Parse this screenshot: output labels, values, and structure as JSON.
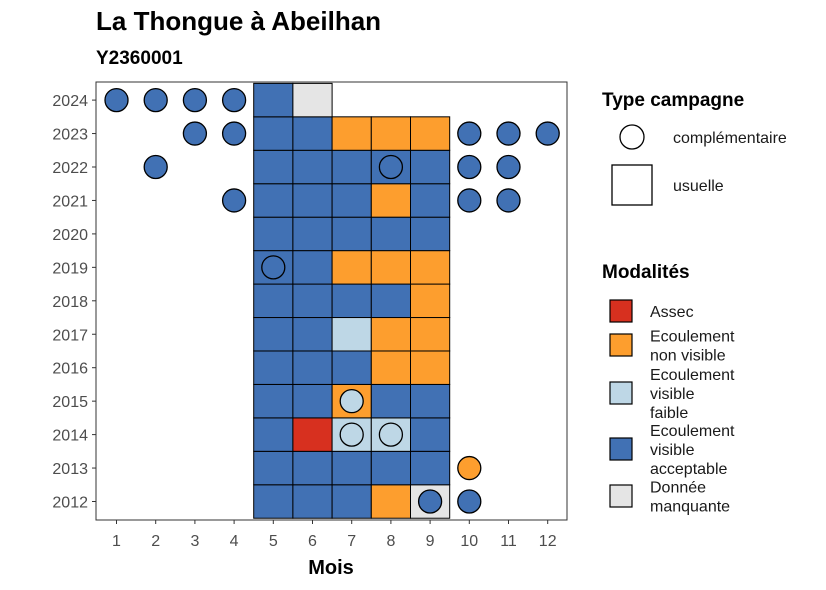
{
  "chart_data": {
    "type": "heatmap",
    "title": "La Thongue à Abeilhan",
    "subtitle": "Y2360001",
    "xlabel": "Mois",
    "ylabel": "",
    "x_ticks": [
      "1",
      "2",
      "3",
      "4",
      "5",
      "6",
      "7",
      "8",
      "9",
      "10",
      "11",
      "12"
    ],
    "y_ticks": [
      "2012",
      "2013",
      "2014",
      "2015",
      "2016",
      "2017",
      "2018",
      "2019",
      "2020",
      "2021",
      "2022",
      "2023",
      "2024"
    ],
    "grid": false,
    "legend_placement": "right",
    "legend": {
      "type_title": "Type campagne",
      "types": [
        {
          "key": "complementaire",
          "label": "complémentaire",
          "shape": "circle"
        },
        {
          "key": "usuelle",
          "label": "usuelle",
          "shape": "square"
        }
      ],
      "modalites_title": "Modalités",
      "modalites": [
        {
          "key": "assec",
          "label_lines": [
            "Assec"
          ],
          "color": "#d7301f"
        },
        {
          "key": "non_visible",
          "label_lines": [
            "Ecoulement",
            "non visible"
          ],
          "color": "#fd9e2e"
        },
        {
          "key": "faible",
          "label_lines": [
            "Ecoulement",
            "visible",
            "faible"
          ],
          "color": "#bed7e6"
        },
        {
          "key": "acceptable",
          "label_lines": [
            "Ecoulement",
            "visible",
            "acceptable"
          ],
          "color": "#4171b4"
        },
        {
          "key": "manquante",
          "label_lines": [
            "Donnée",
            "manquante"
          ],
          "color": "#e5e5e5"
        }
      ]
    },
    "usuelle": {
      "2024": [
        "acceptable",
        "manquante"
      ],
      "2023": [
        "acceptable",
        "acceptable",
        "non_visible",
        "non_visible",
        "non_visible"
      ],
      "2022": [
        "acceptable",
        "acceptable",
        "acceptable",
        "acceptable",
        "acceptable"
      ],
      "2021": [
        "acceptable",
        "acceptable",
        "acceptable",
        "non_visible",
        "acceptable"
      ],
      "2020": [
        "acceptable",
        "acceptable",
        "acceptable",
        "acceptable",
        "acceptable"
      ],
      "2019": [
        "acceptable",
        "acceptable",
        "non_visible",
        "non_visible",
        "non_visible"
      ],
      "2018": [
        "acceptable",
        "acceptable",
        "acceptable",
        "acceptable",
        "non_visible"
      ],
      "2017": [
        "acceptable",
        "acceptable",
        "faible",
        "non_visible",
        "non_visible"
      ],
      "2016": [
        "acceptable",
        "acceptable",
        "acceptable",
        "non_visible",
        "non_visible"
      ],
      "2015": [
        "acceptable",
        "acceptable",
        "non_visible",
        "acceptable",
        "acceptable"
      ],
      "2014": [
        "acceptable",
        "assec",
        "faible",
        "faible",
        "acceptable"
      ],
      "2013": [
        "acceptable",
        "acceptable",
        "acceptable",
        "acceptable",
        "acceptable"
      ],
      "2012": [
        "acceptable",
        "acceptable",
        "acceptable",
        "non_visible",
        "manquante"
      ]
    },
    "usuelle_start_month": 5,
    "complementaire": [
      {
        "year": "2024",
        "month": 1,
        "value": "acceptable"
      },
      {
        "year": "2024",
        "month": 2,
        "value": "acceptable"
      },
      {
        "year": "2024",
        "month": 3,
        "value": "acceptable"
      },
      {
        "year": "2024",
        "month": 4,
        "value": "acceptable"
      },
      {
        "year": "2023",
        "month": 3,
        "value": "acceptable"
      },
      {
        "year": "2023",
        "month": 4,
        "value": "acceptable"
      },
      {
        "year": "2023",
        "month": 10,
        "value": "acceptable"
      },
      {
        "year": "2023",
        "month": 11,
        "value": "acceptable"
      },
      {
        "year": "2023",
        "month": 12,
        "value": "acceptable"
      },
      {
        "year": "2022",
        "month": 2,
        "value": "acceptable"
      },
      {
        "year": "2022",
        "month": 8,
        "value": "acceptable"
      },
      {
        "year": "2022",
        "month": 10,
        "value": "acceptable"
      },
      {
        "year": "2022",
        "month": 11,
        "value": "acceptable"
      },
      {
        "year": "2021",
        "month": 4,
        "value": "acceptable"
      },
      {
        "year": "2021",
        "month": 10,
        "value": "acceptable"
      },
      {
        "year": "2021",
        "month": 11,
        "value": "acceptable"
      },
      {
        "year": "2019",
        "month": 5,
        "value": "acceptable"
      },
      {
        "year": "2015",
        "month": 7,
        "value": "faible"
      },
      {
        "year": "2014",
        "month": 7,
        "value": "faible"
      },
      {
        "year": "2014",
        "month": 8,
        "value": "faible"
      },
      {
        "year": "2013",
        "month": 10,
        "value": "non_visible"
      },
      {
        "year": "2012",
        "month": 9,
        "value": "acceptable"
      },
      {
        "year": "2012",
        "month": 10,
        "value": "acceptable"
      }
    ]
  }
}
